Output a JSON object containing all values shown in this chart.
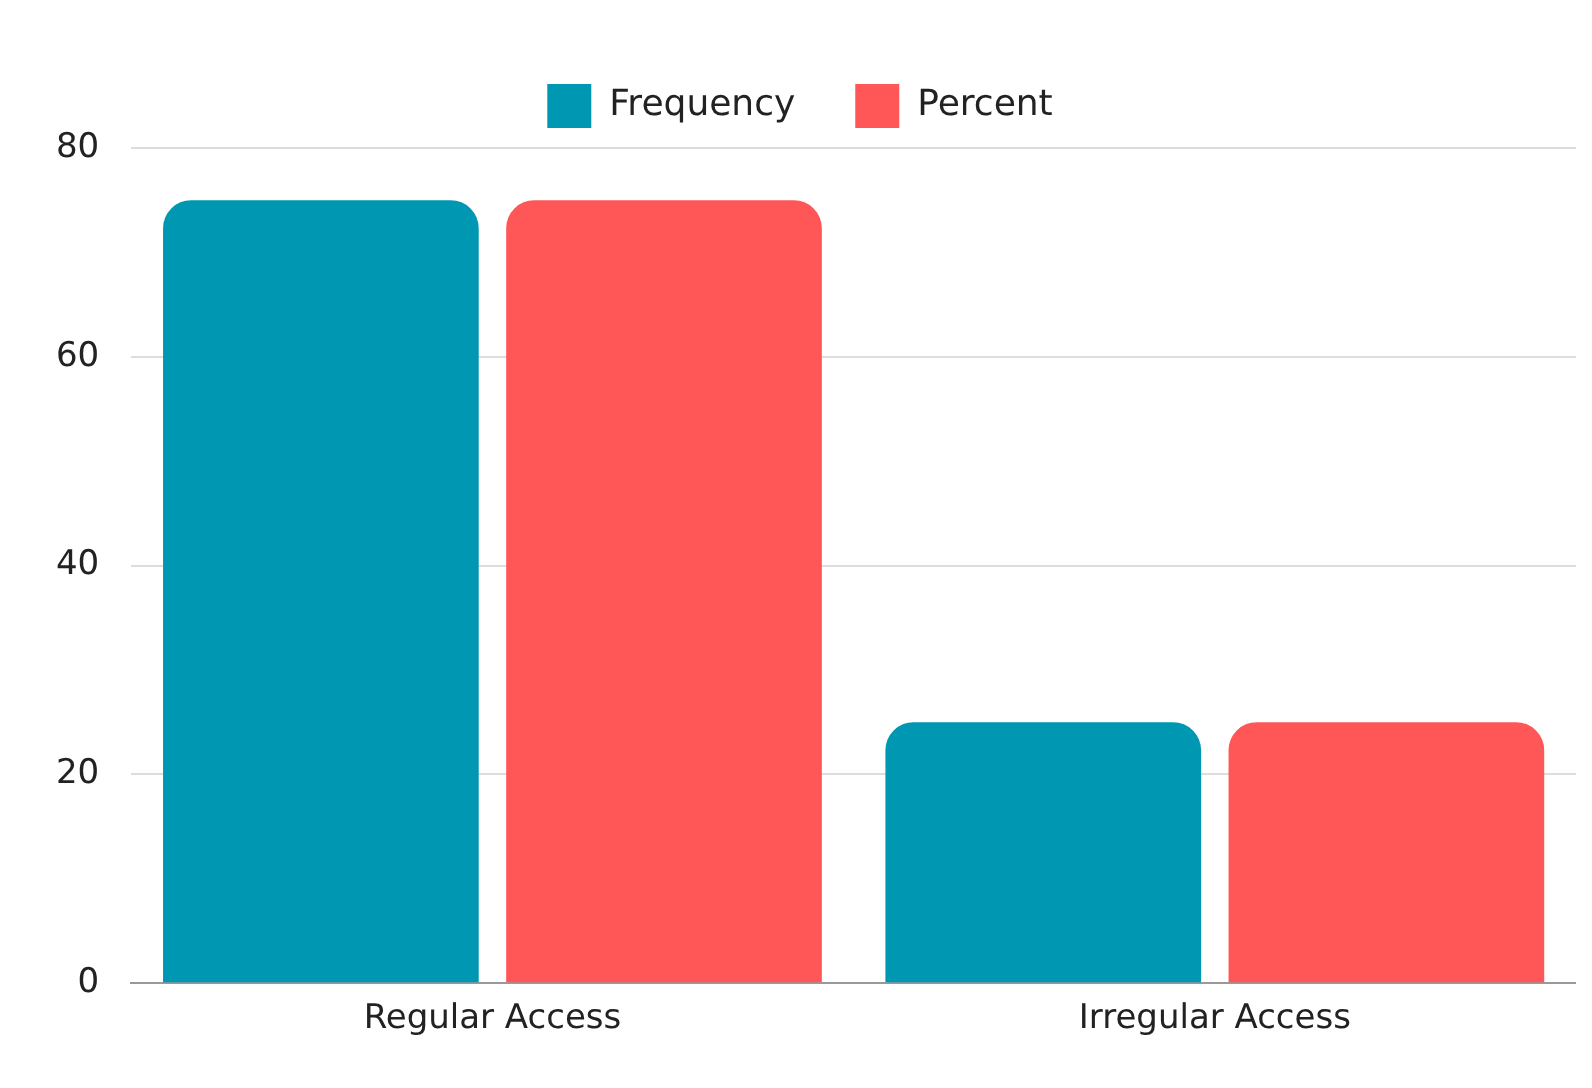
{
  "chart_data": {
    "type": "bar",
    "categories": [
      "Regular Access",
      "Irregular Access"
    ],
    "series": [
      {
        "name": "Frequency",
        "color": "#0097b2",
        "values": [
          75,
          25
        ]
      },
      {
        "name": "Percent",
        "color": "#ff5757",
        "values": [
          75,
          25
        ]
      }
    ],
    "ylim": [
      0,
      80
    ],
    "yticks": [
      0,
      20,
      40,
      60,
      80
    ],
    "grid": "y",
    "legend": "top"
  }
}
